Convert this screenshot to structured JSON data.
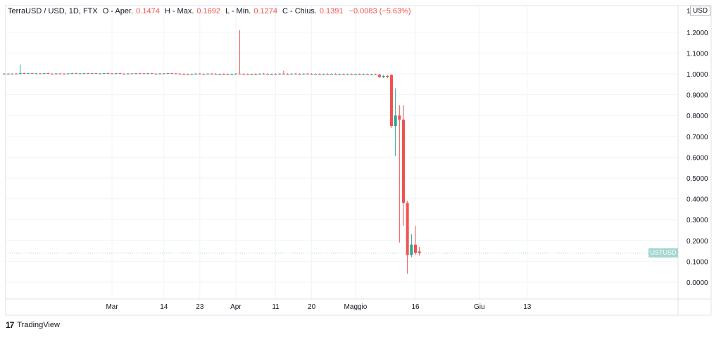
{
  "legend": {
    "symbol": "TerraUSD / USD, 1D, FTX",
    "open_label": "O - Aper.",
    "open_value": "0.1474",
    "high_label": "H - Max.",
    "high_value": "0.1692",
    "low_label": "L - Min.",
    "low_value": "0.1274",
    "close_label": "C - Chius.",
    "close_value": "0.1391",
    "change": "−0.0083 (−5.63%)"
  },
  "unit": "USD",
  "last_price_label": "USTUSD",
  "footer": {
    "logo": "17",
    "brand": "TradingView"
  },
  "colors": {
    "up": "#26a69a",
    "down": "#ef5350",
    "grid": "#f0f3fa",
    "axis": "#e0e3eb"
  },
  "chart_data": {
    "type": "candlestick",
    "title": "",
    "series": "TerraUSD / USD",
    "ylim": [
      -0.07,
      1.33
    ],
    "ytick_top_label": "1",
    "yticks": [
      "1.2000",
      "1.1000",
      "1.0000",
      "0.9000",
      "0.8000",
      "0.7000",
      "0.6000",
      "0.5000",
      "0.4000",
      "0.3000",
      "0.2000",
      "0.1000",
      "0.0000"
    ],
    "xticks": [
      {
        "label": "Mar",
        "idx": 27
      },
      {
        "label": "14",
        "idx": 40
      },
      {
        "label": "23",
        "idx": 49
      },
      {
        "label": "Apr",
        "idx": 58
      },
      {
        "label": "11",
        "idx": 68
      },
      {
        "label": "20",
        "idx": 77
      },
      {
        "label": "Maggio",
        "idx": 88
      },
      {
        "label": "16",
        "idx": 103
      },
      {
        "label": "Giu",
        "idx": 119
      },
      {
        "label": "13",
        "idx": 131
      }
    ],
    "x_range": [
      0,
      134
    ],
    "candles": [
      [
        0,
        1.0,
        1.003,
        0.997,
        1.001
      ],
      [
        1,
        1.001,
        1.003,
        0.998,
        0.999
      ],
      [
        2,
        0.999,
        1.002,
        0.997,
        1.001
      ],
      [
        3,
        1.001,
        1.004,
        0.998,
        1.0
      ],
      [
        4,
        1.0,
        1.045,
        0.997,
        1.003
      ],
      [
        5,
        1.003,
        1.005,
        0.999,
        1.002
      ],
      [
        6,
        1.002,
        1.004,
        0.999,
        1.003
      ],
      [
        7,
        1.003,
        1.005,
        1.0,
        1.001
      ],
      [
        8,
        1.001,
        1.004,
        0.998,
        1.002
      ],
      [
        9,
        1.002,
        1.004,
        0.999,
        1.001
      ],
      [
        10,
        1.001,
        1.004,
        0.998,
        1.003
      ],
      [
        11,
        1.003,
        1.005,
        1.0,
        1.001
      ],
      [
        12,
        1.001,
        1.003,
        0.998,
        1.0
      ],
      [
        13,
        1.0,
        1.003,
        0.997,
        1.002
      ],
      [
        14,
        1.002,
        1.004,
        0.999,
        1.001
      ],
      [
        15,
        1.001,
        1.003,
        0.998,
        1.0
      ],
      [
        16,
        1.0,
        1.003,
        0.997,
        1.002
      ],
      [
        17,
        1.002,
        1.005,
        0.999,
        1.003
      ],
      [
        18,
        1.003,
        1.005,
        1.0,
        1.001
      ],
      [
        19,
        1.001,
        1.004,
        0.998,
        1.002
      ],
      [
        20,
        1.002,
        1.004,
        0.999,
        1.003
      ],
      [
        21,
        1.003,
        1.005,
        1.0,
        1.002
      ],
      [
        22,
        1.002,
        1.004,
        0.999,
        1.003
      ],
      [
        23,
        1.003,
        1.005,
        1.0,
        1.001
      ],
      [
        24,
        1.001,
        1.004,
        0.998,
        1.002
      ],
      [
        25,
        1.002,
        1.004,
        0.999,
        1.003
      ],
      [
        26,
        1.003,
        1.006,
        1.0,
        1.002
      ],
      [
        27,
        1.002,
        1.004,
        0.999,
        1.001
      ],
      [
        28,
        1.001,
        1.004,
        0.998,
        1.003
      ],
      [
        29,
        1.003,
        1.005,
        1.0,
        1.001
      ],
      [
        30,
        1.001,
        1.003,
        0.998,
        1.0
      ],
      [
        31,
        1.0,
        1.003,
        0.997,
        1.002
      ],
      [
        32,
        1.002,
        1.004,
        0.999,
        1.001
      ],
      [
        33,
        1.001,
        1.004,
        0.998,
        1.003
      ],
      [
        34,
        1.003,
        1.005,
        1.0,
        1.002
      ],
      [
        35,
        1.002,
        1.004,
        0.999,
        1.001
      ],
      [
        36,
        1.001,
        1.004,
        0.998,
        1.003
      ],
      [
        37,
        1.003,
        1.005,
        1.0,
        1.001
      ],
      [
        38,
        1.001,
        1.003,
        0.998,
        1.0
      ],
      [
        39,
        1.0,
        1.003,
        0.997,
        1.002
      ],
      [
        40,
        1.002,
        1.004,
        0.999,
        1.001
      ],
      [
        41,
        1.001,
        1.004,
        0.998,
        1.003
      ],
      [
        42,
        1.003,
        1.005,
        1.0,
        1.002
      ],
      [
        43,
        1.002,
        1.004,
        0.999,
        1.001
      ],
      [
        44,
        1.001,
        1.003,
        0.998,
        1.0
      ],
      [
        45,
        1.0,
        1.003,
        0.997,
        0.999
      ],
      [
        46,
        0.999,
        1.002,
        0.996,
        0.998
      ],
      [
        47,
        0.998,
        1.001,
        0.995,
        1.0
      ],
      [
        48,
        1.0,
        1.003,
        0.997,
        1.001
      ],
      [
        49,
        1.001,
        1.004,
        0.998,
        0.999
      ],
      [
        50,
        0.999,
        1.002,
        0.996,
        0.998
      ],
      [
        51,
        0.998,
        1.002,
        0.996,
        1.001
      ],
      [
        52,
        1.001,
        1.004,
        0.998,
        1.0
      ],
      [
        53,
        1.0,
        1.003,
        0.997,
        0.998
      ],
      [
        54,
        0.998,
        1.001,
        0.995,
        1.0
      ],
      [
        55,
        1.0,
        1.003,
        0.997,
        0.999
      ],
      [
        56,
        0.999,
        1.002,
        0.996,
        0.998
      ],
      [
        57,
        0.998,
        1.001,
        0.995,
        1.0
      ],
      [
        58,
        1.0,
        1.003,
        0.997,
        1.001
      ],
      [
        59,
        1.001,
        1.21,
        0.998,
        1.0
      ],
      [
        60,
        1.0,
        1.003,
        0.997,
        0.999
      ],
      [
        61,
        0.999,
        1.002,
        0.996,
        0.998
      ],
      [
        62,
        0.998,
        1.001,
        0.995,
        1.0
      ],
      [
        63,
        1.0,
        1.003,
        0.997,
        0.999
      ],
      [
        64,
        0.999,
        1.002,
        0.996,
        1.001
      ],
      [
        65,
        1.001,
        1.004,
        0.998,
        1.0
      ],
      [
        66,
        1.0,
        1.003,
        0.997,
        0.998
      ],
      [
        67,
        0.998,
        1.001,
        0.995,
        1.0
      ],
      [
        68,
        1.0,
        1.003,
        0.997,
        0.999
      ],
      [
        69,
        0.999,
        1.002,
        0.996,
        1.001
      ],
      [
        70,
        1.001,
        1.015,
        0.998,
        1.0
      ],
      [
        71,
        1.0,
        1.003,
        0.997,
        0.999
      ],
      [
        72,
        0.999,
        1.002,
        0.996,
        1.001
      ],
      [
        73,
        1.001,
        1.004,
        0.998,
        1.0
      ],
      [
        74,
        1.0,
        1.003,
        0.997,
        0.999
      ],
      [
        75,
        0.999,
        1.002,
        0.996,
        1.001
      ],
      [
        76,
        1.001,
        1.004,
        0.998,
        1.0
      ],
      [
        77,
        1.0,
        1.003,
        0.997,
        0.999
      ],
      [
        78,
        0.999,
        1.002,
        0.996,
        1.0
      ],
      [
        79,
        1.0,
        1.003,
        0.997,
        0.998
      ],
      [
        80,
        0.998,
        1.001,
        0.995,
        1.0
      ],
      [
        81,
        1.0,
        1.003,
        0.997,
        0.999
      ],
      [
        82,
        0.999,
        1.002,
        0.996,
        1.0
      ],
      [
        83,
        1.0,
        1.003,
        0.997,
        0.998
      ],
      [
        84,
        0.998,
        1.001,
        0.995,
        0.999
      ],
      [
        85,
        0.999,
        1.002,
        0.996,
        0.998
      ],
      [
        86,
        0.998,
        1.001,
        0.995,
        0.999
      ],
      [
        87,
        0.999,
        1.002,
        0.996,
        0.998
      ],
      [
        88,
        0.998,
        1.001,
        0.995,
        0.999
      ],
      [
        89,
        0.999,
        1.002,
        0.996,
        0.998
      ],
      [
        90,
        0.998,
        1.001,
        0.995,
        0.999
      ],
      [
        91,
        0.999,
        1.002,
        0.996,
        0.997
      ],
      [
        92,
        0.997,
        1.0,
        0.994,
        0.998
      ],
      [
        93,
        0.998,
        1.001,
        0.995,
        0.996
      ],
      [
        94,
        0.996,
        1.0,
        0.98,
        0.985
      ],
      [
        95,
        0.985,
        0.995,
        0.98,
        0.99
      ],
      [
        96,
        0.99,
        0.995,
        0.98,
        0.985
      ],
      [
        97,
        0.995,
        0.998,
        0.74,
        0.75
      ],
      [
        98,
        0.75,
        0.93,
        0.605,
        0.8
      ],
      [
        99,
        0.8,
        0.85,
        0.19,
        0.78
      ],
      [
        100,
        0.78,
        0.85,
        0.27,
        0.38
      ],
      [
        101,
        0.38,
        0.39,
        0.04,
        0.13
      ],
      [
        102,
        0.13,
        0.23,
        0.12,
        0.18
      ],
      [
        103,
        0.18,
        0.27,
        0.13,
        0.14
      ],
      [
        104,
        0.1474,
        0.1692,
        0.1274,
        0.1391
      ]
    ],
    "last_close": 0.1391
  }
}
